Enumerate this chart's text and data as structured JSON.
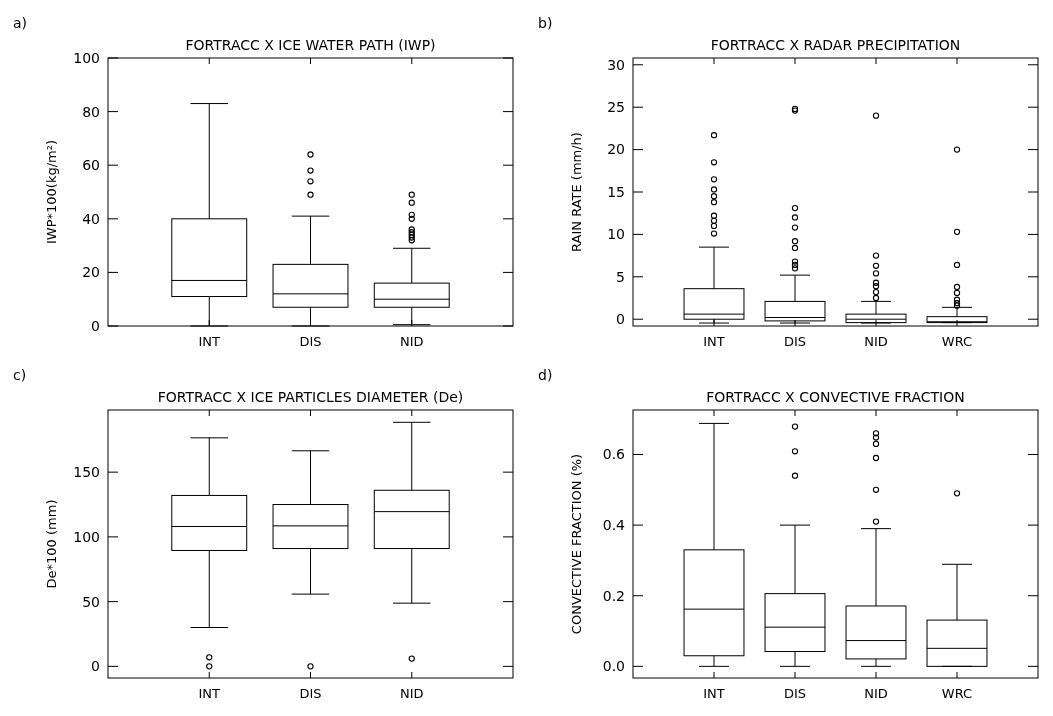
{
  "chart_data": [
    {
      "type": "box",
      "title": "FORTRACC X ICE WATER PATH (IWP)",
      "ylabel": "IWP*100(kg/m²)",
      "annotations": [
        "a)"
      ],
      "categories": [
        "INT",
        "DIS",
        "NID"
      ],
      "ylim": [
        0,
        100
      ],
      "yticks": [
        0,
        20,
        40,
        60,
        80,
        100
      ],
      "boxes": [
        {
          "low": 0,
          "q1": 11,
          "median": 17,
          "q3": 40,
          "high": 83
        },
        {
          "low": 0,
          "q1": 7,
          "median": 12,
          "q3": 23,
          "high": 41,
          "outliers": [
            64,
            58,
            54,
            49
          ]
        },
        {
          "low": 0.5,
          "q1": 7,
          "median": 10,
          "q3": 16,
          "high": 29,
          "outliers": [
            49,
            46,
            41.5,
            40,
            36,
            35,
            34,
            33,
            32
          ]
        }
      ]
    },
    {
      "type": "box",
      "title": "FORTRACC X RADAR PRECIPITATION",
      "ylabel": "RAIN RATE (mm/h)",
      "annotations": [
        "b)"
      ],
      "categories": [
        "INT",
        "DIS",
        "NID",
        "WRC"
      ],
      "ylim": [
        -0.8,
        30.8
      ],
      "yticks": [
        0,
        5,
        10,
        15,
        20,
        25,
        30
      ],
      "boxes": [
        {
          "low": -0.45,
          "q1": 0,
          "median": 0.6,
          "q3": 3.6,
          "high": 8.5,
          "outliers": [
            21.7,
            18.5,
            16.5,
            15.3,
            14.5,
            13.8,
            12.2,
            11.6,
            11,
            10.1
          ]
        },
        {
          "low": -0.45,
          "q1": -0.2,
          "median": 0.2,
          "q3": 2.1,
          "high": 5.2,
          "outliers": [
            24.8,
            24.6,
            13.1,
            12,
            10.8,
            9.2,
            8.4,
            6.8,
            6.4,
            6
          ]
        },
        {
          "low": -0.45,
          "q1": -0.4,
          "median": 0,
          "q3": 0.6,
          "high": 2.1,
          "outliers": [
            24,
            7.5,
            6.3,
            5.4,
            4.3,
            3.9,
            3.2,
            2.5
          ]
        },
        {
          "low": -0.4,
          "q1": -0.4,
          "median": -0.3,
          "q3": 0.3,
          "high": 1.4,
          "outliers": [
            20,
            10.3,
            6.4,
            3.8,
            3.1,
            2.3,
            1.9,
            1.6
          ]
        }
      ]
    },
    {
      "type": "box",
      "title": "FORTRACC X ICE PARTICLES DIAMETER (De)",
      "ylabel": "De*100 (mm)",
      "annotations": [
        "c)"
      ],
      "categories": [
        "INT",
        "DIS",
        "NID"
      ],
      "ylim": [
        -9,
        198
      ],
      "yticks": [
        0,
        50,
        100,
        150
      ],
      "boxes": [
        {
          "low": 30,
          "q1": 89.5,
          "median": 108,
          "q3": 132,
          "high": 176.5,
          "outliers": [
            7,
            0
          ]
        },
        {
          "low": 55.8,
          "q1": 91,
          "median": 108.5,
          "q3": 125,
          "high": 166.5,
          "outliers": [
            0
          ]
        },
        {
          "low": 48.8,
          "q1": 91,
          "median": 119.5,
          "q3": 136,
          "high": 188.5,
          "outliers": [
            6
          ]
        }
      ]
    },
    {
      "type": "box",
      "title": "FORTRACC X CONVECTIVE FRACTION",
      "ylabel": "CONVECTIVE FRACTION (%)",
      "annotations": [
        "d)"
      ],
      "categories": [
        "INT",
        "DIS",
        "NID",
        "WRC"
      ],
      "ylim": [
        -0.033,
        0.726
      ],
      "yticks": [
        {
          "value": 0,
          "label": "0.0"
        },
        0.2,
        0.4,
        0.6
      ],
      "boxes": [
        {
          "low": 0,
          "q1": 0.03,
          "median": 0.162,
          "q3": 0.33,
          "high": 0.688
        },
        {
          "low": 0,
          "q1": 0.042,
          "median": 0.111,
          "q3": 0.206,
          "high": 0.4,
          "outliers": [
            0.679,
            0.609,
            0.54
          ]
        },
        {
          "low": 0,
          "q1": 0.021,
          "median": 0.073,
          "q3": 0.171,
          "high": 0.39,
          "outliers": [
            0.66,
            0.648,
            0.63,
            0.59,
            0.5,
            0.41
          ]
        },
        {
          "low": 0,
          "q1": 0,
          "median": 0.051,
          "q3": 0.131,
          "high": 0.289,
          "outliers": [
            0.49
          ]
        }
      ]
    }
  ]
}
